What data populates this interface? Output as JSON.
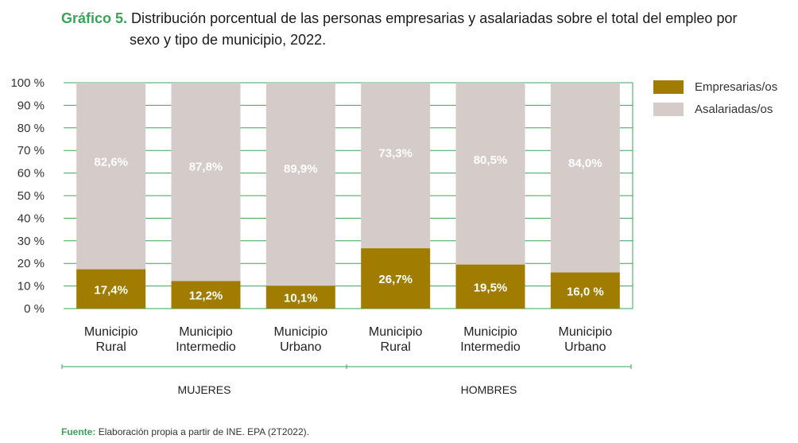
{
  "title": {
    "label": "Gráfico 5.",
    "line1": "Distribución porcentual de las personas empresarias y asalariadas sobre el total del empleo por",
    "line2": "sexo y tipo de municipio, 2022."
  },
  "source": {
    "label": "Fuente:",
    "text": "Elaboración propia a partir de INE. EPA (2T2022)."
  },
  "colors": {
    "empresarias": "#a07d00",
    "asalariadas": "#d5cbc8",
    "grid": "#3aa35a",
    "title_accent": "#3aa35a"
  },
  "chart_data": {
    "type": "bar",
    "stacked": true,
    "ylim": [
      0,
      100
    ],
    "yticks": [
      "0 %",
      "10 %",
      "20 %",
      "30 %",
      "40 %",
      "50 %",
      "60 %",
      "70 %",
      "80 %",
      "90 %",
      "100 %"
    ],
    "categories": [
      [
        "Municipio",
        "Rural"
      ],
      [
        "Municipio",
        "Intermedio"
      ],
      [
        "Municipio",
        "Urbano"
      ],
      [
        "Municipio",
        "Rural"
      ],
      [
        "Municipio",
        "Intermedio"
      ],
      [
        "Municipio",
        "Urbano"
      ]
    ],
    "groups": [
      {
        "name": "MUJERES",
        "indices": [
          0,
          1,
          2
        ]
      },
      {
        "name": "HOMBRES",
        "indices": [
          3,
          4,
          5
        ]
      }
    ],
    "series": [
      {
        "name": "Empresarias/os",
        "values": [
          17.4,
          12.2,
          10.1,
          26.7,
          19.5,
          16.0
        ],
        "labels": [
          "17,4%",
          "12,2%",
          "10,1%",
          "26,7%",
          "19,5%",
          "16,0 %"
        ]
      },
      {
        "name": "Asalariadas/os",
        "values": [
          82.6,
          87.8,
          89.9,
          73.3,
          80.5,
          84.0
        ],
        "labels": [
          "82,6%",
          "87,8%",
          "89,9%",
          "73,3%",
          "80,5%",
          "84,0%"
        ]
      }
    ],
    "legend_position": "top-right"
  }
}
